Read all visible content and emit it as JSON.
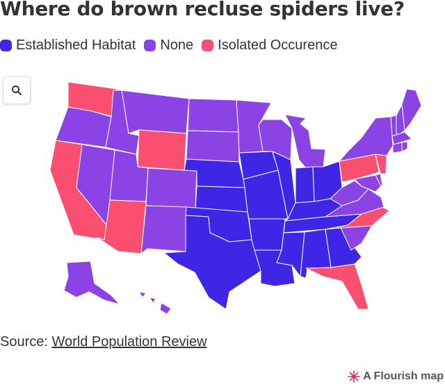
{
  "title": "Where do brown recluse spiders live?",
  "legend": [
    {
      "label": "Established Habitat",
      "color": "#3f25e6"
    },
    {
      "label": "None",
      "color": "#8c43e6"
    },
    {
      "label": "Isolated Occurence",
      "color": "#fa4f6f"
    }
  ],
  "search": {
    "icon": "search-icon"
  },
  "states": {
    "WA": "Isolated Occurence",
    "OR": "None",
    "CA": "Isolated Occurence",
    "NV": "None",
    "ID": "None",
    "MT": "None",
    "WY": "Isolated Occurence",
    "UT": "None",
    "AZ": "Isolated Occurence",
    "CO": "None",
    "NM": "None",
    "ND": "None",
    "SD": "None",
    "NE": "Established Habitat",
    "KS": "Established Habitat",
    "OK": "Established Habitat",
    "TX": "Established Habitat",
    "MN": "None",
    "IA": "Established Habitat",
    "MO": "Established Habitat",
    "AR": "Established Habitat",
    "LA": "Established Habitat",
    "WI": "None",
    "IL": "Established Habitat",
    "MI": "None",
    "IN": "Established Habitat",
    "OH": "Established Habitat",
    "KY": "Established Habitat",
    "TN": "Established Habitat",
    "MS": "Established Habitat",
    "AL": "Established Habitat",
    "GA": "Established Habitat",
    "FL": "Isolated Occurence",
    "SC": "None",
    "NC": "Isolated Occurence",
    "VA": "None",
    "WV": "None",
    "MD": "None",
    "DE": "None",
    "PA": "Isolated Occurence",
    "NJ": "Isolated Occurence",
    "NY": "None",
    "CT": "None",
    "RI": "None",
    "MA": "None",
    "VT": "None",
    "NH": "None",
    "ME": "None",
    "AK": "None",
    "HI": "None"
  },
  "source": {
    "prefix": "Source: ",
    "link_text": "World Population Review"
  },
  "attribution": {
    "label": "A Flourish map",
    "icon": "flourish-logo-icon"
  }
}
